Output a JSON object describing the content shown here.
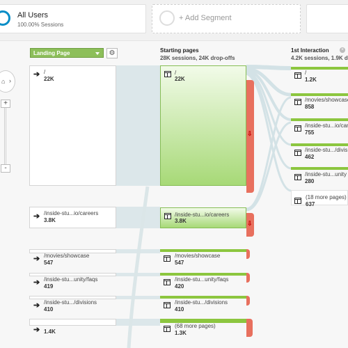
{
  "segments": {
    "all_users": {
      "title": "All Users",
      "subtitle": "100.00% Sessions"
    },
    "add_segment": "+ Add Segment"
  },
  "dimension_select": "Landing Page",
  "columns": {
    "starting": {
      "title": "Starting pages",
      "summary": "28K sessions, 24K drop-offs"
    },
    "first": {
      "title": "1st Interaction",
      "summary": "4.2K sessions, 1.9K d"
    }
  },
  "landing_pages": [
    {
      "label": "/",
      "value": "22K"
    },
    {
      "label": "/inside-stu...io/careers",
      "value": "3.8K"
    },
    {
      "label": "/movies/showcase",
      "value": "547"
    },
    {
      "label": "/inside-stu...unity/faqs",
      "value": "419"
    },
    {
      "label": "/inside-stu.../divisions",
      "value": "410"
    },
    {
      "label": "",
      "value": "1.4K"
    }
  ],
  "starting_pages": [
    {
      "label": "/",
      "value": "22K"
    },
    {
      "label": "/inside-stu...io/careers",
      "value": "3.8K"
    },
    {
      "label": "/movies/showcase",
      "value": "547"
    },
    {
      "label": "/inside-stu...unity/faqs",
      "value": "420"
    },
    {
      "label": "/inside-stu.../divisions",
      "value": "410"
    },
    {
      "label": "(68 more pages)",
      "value": "1.3K"
    }
  ],
  "first_interaction": [
    {
      "label": "/",
      "value": "1.2K"
    },
    {
      "label": "/movies/showcase",
      "value": "858"
    },
    {
      "label": "/inside-stu...io/car",
      "value": "755"
    },
    {
      "label": "/inside-stu.../divis",
      "value": "462"
    },
    {
      "label": "/inside-stu...unity",
      "value": "280"
    },
    {
      "label": "(18 more pages)",
      "value": "637"
    }
  ],
  "colors": {
    "accent": "#058dc7",
    "green": "#8cc63f",
    "dropoff": "#e8705e"
  },
  "icons": [
    "entrance-arrow-icon",
    "page-icon",
    "gear-icon",
    "home-icon",
    "chevron-right-icon",
    "close-icon"
  ]
}
